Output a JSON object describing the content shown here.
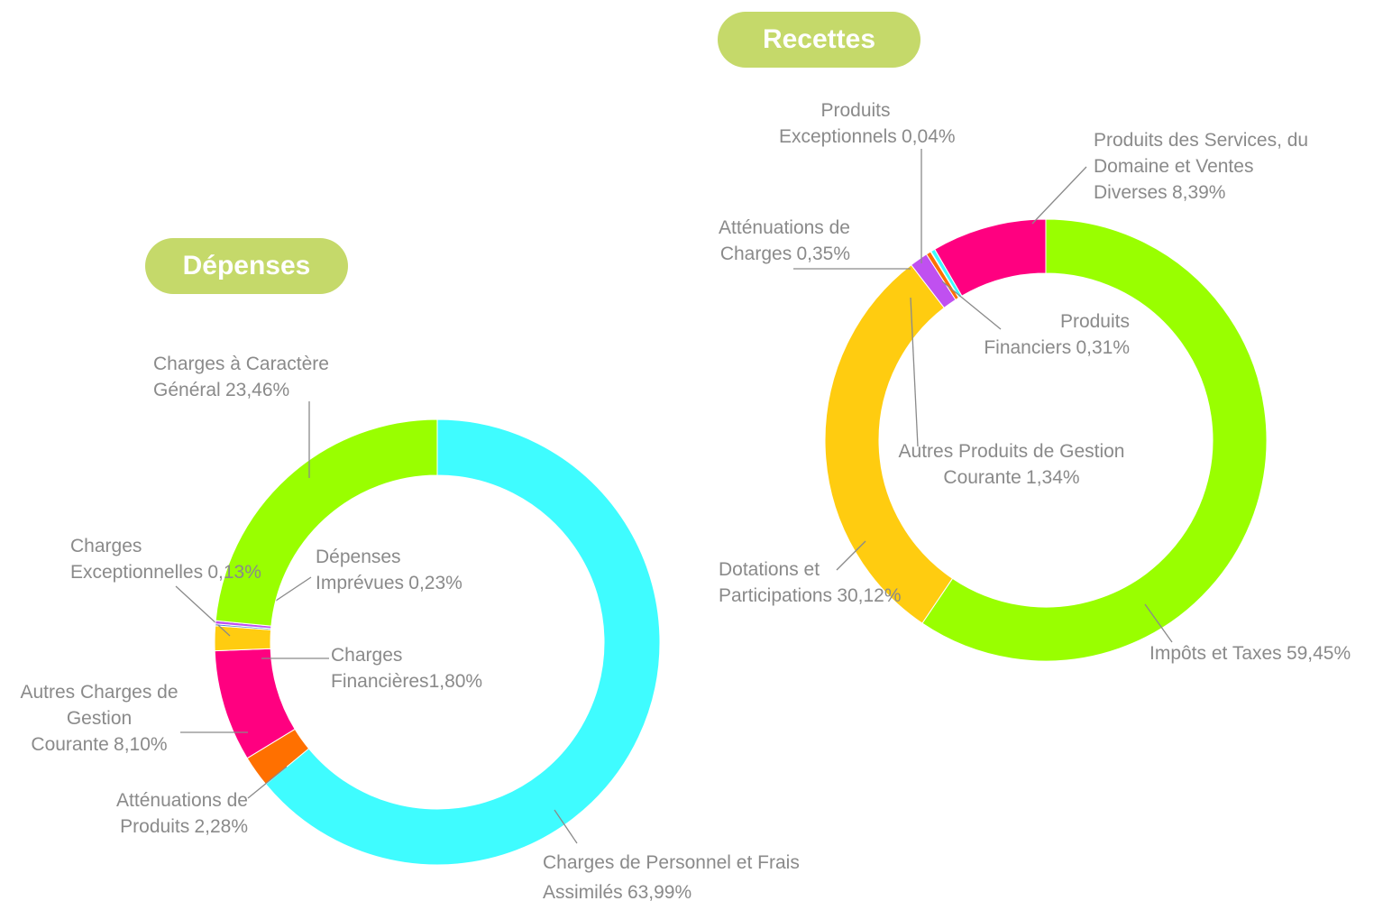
{
  "chart_data": [
    {
      "type": "donut",
      "title": "Dépenses",
      "categories": [
        "Charges de Personnel et Frais Assimilés",
        "Atténuations de Produits",
        "Autres Charges de Gestion Courante",
        "Charges Financières",
        "Charges Exceptionnelles",
        "Dépenses Imprévues",
        "Charges à Caractère Général"
      ],
      "values": [
        63.99,
        2.28,
        8.1,
        1.8,
        0.13,
        0.23,
        23.46
      ],
      "value_labels": [
        "63,99%",
        "2,28%",
        "8,10%",
        "1,80%",
        "0,13%",
        "0,23%",
        "23,46%"
      ],
      "colors": [
        "#3ffcff",
        "#ff7000",
        "#ff0080",
        "#ffcc10",
        "#4a86d6",
        "#c050f0",
        "#99ff00"
      ]
    },
    {
      "type": "donut",
      "title": "Recettes",
      "categories": [
        "Impôts et Taxes",
        "Dotations et Participations",
        "Autres Produits de Gestion Courante",
        "Atténuations de Charges",
        "Produits Exceptionnels",
        "Produits Financiers",
        "Produits des Services, du Domaine et Ventes Diverses"
      ],
      "values": [
        59.45,
        30.12,
        1.34,
        0.35,
        0.04,
        0.31,
        8.39
      ],
      "value_labels": [
        "59,45%",
        "30,12%",
        "1,34%",
        "0,35%",
        "0,04%",
        "0,31%",
        "8,39%"
      ],
      "colors": [
        "#99ff00",
        "#ffcc10",
        "#c050f0",
        "#ff7000",
        "#2a6a9a",
        "#3ffcff",
        "#ff0080"
      ]
    }
  ]
}
